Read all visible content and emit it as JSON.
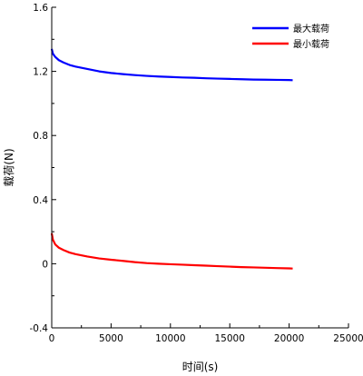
{
  "chart_data": {
    "type": "line",
    "title": "",
    "xlabel": "时间(s)",
    "ylabel": "载荷(N)",
    "xlim": [
      0,
      25000
    ],
    "ylim": [
      -0.4,
      1.6
    ],
    "x_ticks": [
      "0",
      "5000",
      "10000",
      "15000",
      "20000",
      "25000"
    ],
    "y_ticks": [
      "-0.4",
      "0",
      "0.4",
      "0.8",
      "1.2",
      "1.6"
    ],
    "grid": false,
    "legend_position": "top-right",
    "series": [
      {
        "name": "最大载荷",
        "color": "#0000ff",
        "x": [
          0,
          100,
          300,
          600,
          1000,
          1500,
          2000,
          3000,
          4000,
          5000,
          6000,
          7000,
          8000,
          9000,
          10000,
          11000,
          12000,
          13000,
          14000,
          15000,
          16000,
          17000,
          18000,
          19000,
          20000,
          20300
        ],
        "y": [
          1.34,
          1.31,
          1.29,
          1.27,
          1.255,
          1.24,
          1.23,
          1.215,
          1.2,
          1.19,
          1.183,
          1.177,
          1.172,
          1.168,
          1.165,
          1.162,
          1.16,
          1.157,
          1.155,
          1.153,
          1.151,
          1.149,
          1.148,
          1.147,
          1.146,
          1.145
        ]
      },
      {
        "name": "最小载荷",
        "color": "#ff0000",
        "x": [
          0,
          100,
          300,
          600,
          1000,
          1500,
          2000,
          3000,
          4000,
          5000,
          6000,
          7000,
          8000,
          9000,
          10000,
          11000,
          12000,
          13000,
          14000,
          15000,
          16000,
          17000,
          18000,
          19000,
          20000,
          20300
        ],
        "y": [
          0.19,
          0.15,
          0.12,
          0.1,
          0.085,
          0.07,
          0.06,
          0.045,
          0.033,
          0.025,
          0.018,
          0.01,
          0.004,
          0.0,
          -0.003,
          -0.006,
          -0.009,
          -0.012,
          -0.015,
          -0.018,
          -0.021,
          -0.023,
          -0.025,
          -0.027,
          -0.029,
          -0.03
        ]
      }
    ]
  }
}
